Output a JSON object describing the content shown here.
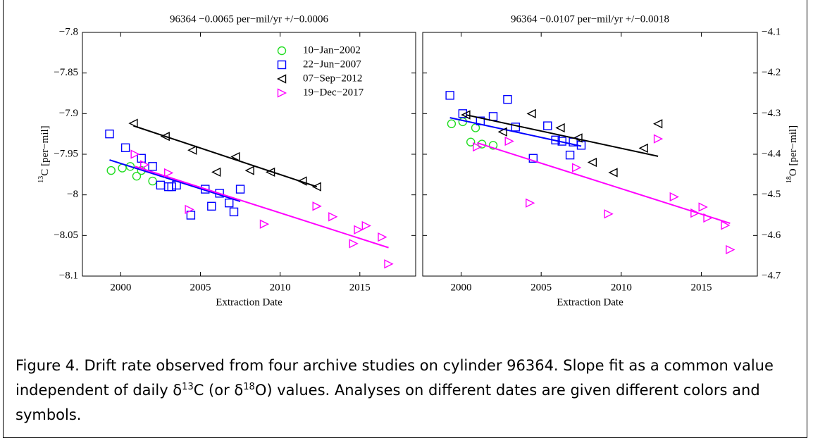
{
  "chart_data": [
    {
      "type": "scatter",
      "title": "96364 −0.0065 per−mil/yr +/−0.0006",
      "xlabel": "Extraction Date",
      "ylabel": {
        "sup": "13",
        "text": "C [per−mil]"
      },
      "yaxis_side": "left",
      "legend": "upper right",
      "xlim": [
        1997.6,
        2018.5
      ],
      "xticks": [
        2000,
        2005,
        2010,
        2015
      ],
      "ylim": [
        -8.1,
        -7.8
      ],
      "yticks": [
        {
          "value": -7.8,
          "label": "−7.8"
        },
        {
          "value": -7.85,
          "label": "−7.85"
        },
        {
          "value": -7.9,
          "label": "−7.9"
        },
        {
          "value": -7.95,
          "label": "−7.95"
        },
        {
          "value": -8,
          "label": "−8"
        },
        {
          "value": -8.05,
          "label": "−8.05"
        },
        {
          "value": -8.1,
          "label": "−8.1"
        }
      ],
      "series": [
        {
          "name": "10−Jan−2002",
          "color": "#22dd22",
          "marker": "circle",
          "x": [
            1999.4,
            2000.1,
            2000.6,
            2001.0,
            2001.3,
            2002.0
          ],
          "values": [
            -7.97,
            -7.967,
            -7.965,
            -7.977,
            -7.97,
            -7.983
          ]
        },
        {
          "name": "22−Jun−2007",
          "color": "#0000ff",
          "marker": "square",
          "x": [
            1999.3,
            2000.3,
            2001.3,
            2002.0,
            2002.5,
            2003.0,
            2003.2,
            2003.5,
            2004.4,
            2005.3,
            2005.7,
            2006.2,
            2006.8,
            2007.1,
            2007.5
          ],
          "values": [
            -7.925,
            -7.942,
            -7.955,
            -7.965,
            -7.988,
            -7.99,
            -7.99,
            -7.988,
            -8.025,
            -7.993,
            -8.014,
            -7.998,
            -8.01,
            -8.021,
            -7.993
          ],
          "fit": {
            "x": [
              1999.3,
              2007.5
            ],
            "values": [
              -7.957,
              -8.008
            ]
          }
        },
        {
          "name": "07−Sep−2012",
          "color": "#000000",
          "marker": "triangle-left",
          "x": [
            2000.8,
            2002.8,
            2004.5,
            2006.0,
            2007.2,
            2008.1,
            2009.4,
            2011.4,
            2012.3
          ],
          "values": [
            -7.912,
            -7.928,
            -7.945,
            -7.972,
            -7.953,
            -7.97,
            -7.972,
            -7.983,
            -7.99
          ],
          "fit": {
            "x": [
              2000.8,
              2012.3
            ],
            "values": [
              -7.915,
              -7.99
            ]
          }
        },
        {
          "name": "19−Dec−2017",
          "color": "#ff00ff",
          "marker": "triangle-right",
          "x": [
            2000.9,
            2001.5,
            2003.0,
            2004.3,
            2009.0,
            2012.3,
            2013.3,
            2014.6,
            2014.9,
            2015.4,
            2016.4,
            2016.8
          ],
          "values": [
            -7.95,
            -7.963,
            -7.973,
            -8.018,
            -8.036,
            -8.014,
            -8.027,
            -8.06,
            -8.043,
            -8.038,
            -8.052,
            -8.085
          ],
          "fit": {
            "x": [
              2000.9,
              2016.8
            ],
            "values": [
              -7.965,
              -8.065
            ]
          }
        }
      ]
    },
    {
      "type": "scatter",
      "title": "96364 −0.0107 per−mil/yr +/−0.0018",
      "xlabel": "Extraction Date",
      "ylabel": {
        "sup": "18",
        "text": "O [per−mil]"
      },
      "yaxis_side": "right",
      "xlim": [
        1997.6,
        2018.5
      ],
      "xticks": [
        2000,
        2005,
        2010,
        2015
      ],
      "ylim": [
        -4.7,
        -4.1
      ],
      "yticks": [
        {
          "value": -4.1,
          "label": "−4.1"
        },
        {
          "value": -4.2,
          "label": "−4.2"
        },
        {
          "value": -4.3,
          "label": "−4.3"
        },
        {
          "value": -4.4,
          "label": "−4.4"
        },
        {
          "value": -4.5,
          "label": "−4.5"
        },
        {
          "value": -4.6,
          "label": "−4.6"
        },
        {
          "value": -4.7,
          "label": "−4.7"
        }
      ],
      "series": [
        {
          "color": "#22dd22",
          "marker": "circle",
          "x": [
            1999.4,
            2000.1,
            2000.6,
            2000.9,
            2001.3,
            2002.0
          ],
          "values": [
            -4.325,
            -4.32,
            -4.37,
            -4.335,
            -4.375,
            -4.378
          ]
        },
        {
          "color": "#0000ff",
          "marker": "square",
          "x": [
            1999.3,
            2000.1,
            2001.2,
            2002.0,
            2002.9,
            2003.4,
            2004.5,
            2005.4,
            2005.9,
            2006.3,
            2006.8,
            2007.0,
            2007.5
          ],
          "values": [
            -4.255,
            -4.3,
            -4.318,
            -4.307,
            -4.265,
            -4.333,
            -4.41,
            -4.33,
            -4.365,
            -4.368,
            -4.402,
            -4.37,
            -4.378
          ],
          "fit": {
            "x": [
              1999.3,
              2007.5
            ],
            "values": [
              -4.31,
              -4.38
            ]
          }
        },
        {
          "color": "#000000",
          "marker": "triangle-left",
          "x": [
            2000.3,
            2002.6,
            2004.4,
            2006.2,
            2007.3,
            2008.2,
            2009.5,
            2011.4,
            2012.3
          ],
          "values": [
            -4.303,
            -4.345,
            -4.3,
            -4.335,
            -4.36,
            -4.42,
            -4.445,
            -4.385,
            -4.325
          ],
          "fit": {
            "x": [
              2000.3,
              2012.3
            ],
            "values": [
              -4.303,
              -4.405
            ]
          }
        },
        {
          "color": "#ff00ff",
          "marker": "triangle-right",
          "x": [
            2001.0,
            2003.0,
            2004.3,
            2007.2,
            2009.2,
            2012.3,
            2013.3,
            2014.6,
            2015.1,
            2015.4,
            2016.5,
            2016.8
          ],
          "values": [
            -4.382,
            -4.368,
            -4.52,
            -4.433,
            -4.547,
            -4.362,
            -4.505,
            -4.545,
            -4.53,
            -4.557,
            -4.575,
            -4.635
          ],
          "fit": {
            "x": [
              2001.0,
              2016.8
            ],
            "values": [
              -4.372,
              -4.57
            ]
          }
        }
      ]
    }
  ],
  "caption": [
    "Figure 4. Drift rate observed from four archive studies on cylinder 96364. Slope fit as a common value independent of daily δ",
    "13",
    "C (or δ",
    "18",
    "O) values.  Analyses on different dates are given different colors and symbols."
  ]
}
